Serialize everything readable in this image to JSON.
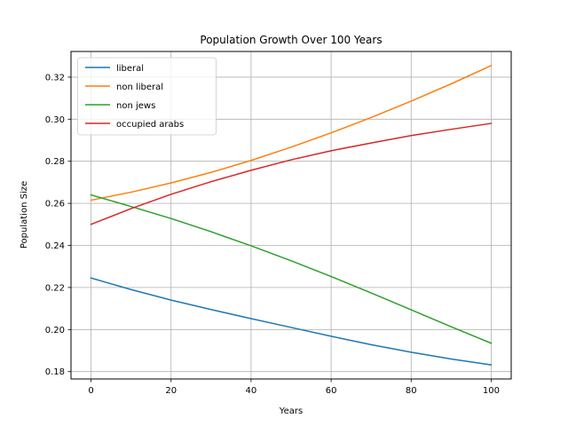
{
  "chart_data": {
    "type": "line",
    "title": "Population Growth Over 100 Years",
    "xlabel": "Years",
    "ylabel": "Population Size",
    "xlim": [
      -5,
      105
    ],
    "ylim": [
      0.1765,
      0.3322
    ],
    "xticks": [
      0,
      20,
      40,
      60,
      80,
      100
    ],
    "yticks": [
      0.18,
      0.2,
      0.22,
      0.24,
      0.26,
      0.28,
      0.3,
      0.32
    ],
    "xtick_labels": [
      "0",
      "20",
      "40",
      "60",
      "80",
      "100"
    ],
    "ytick_labels": [
      "0.18",
      "0.20",
      "0.22",
      "0.24",
      "0.26",
      "0.28",
      "0.30",
      "0.32"
    ],
    "grid": true,
    "legend_position": "upper-left",
    "x": [
      0,
      10,
      20,
      30,
      40,
      50,
      60,
      70,
      80,
      90,
      100
    ],
    "series": [
      {
        "name": "liberal",
        "color": "#1f77b4",
        "values": [
          0.2245,
          0.219,
          0.214,
          0.2095,
          0.2052,
          0.201,
          0.1968,
          0.1928,
          0.1892,
          0.186,
          0.1832
        ]
      },
      {
        "name": "non liberal",
        "color": "#ff7f0e",
        "values": [
          0.2615,
          0.2653,
          0.2697,
          0.2747,
          0.2804,
          0.2867,
          0.2935,
          0.3008,
          0.3086,
          0.3168,
          0.3255
        ]
      },
      {
        "name": "non jews",
        "color": "#2ca02c",
        "values": [
          0.264,
          0.2585,
          0.2528,
          0.2465,
          0.2398,
          0.2327,
          0.2252,
          0.2174,
          0.2094,
          0.2013,
          0.1935
        ]
      },
      {
        "name": "occupied arabs",
        "color": "#d62728",
        "values": [
          0.25,
          0.2575,
          0.2643,
          0.2703,
          0.2757,
          0.2807,
          0.285,
          0.2887,
          0.2922,
          0.2952,
          0.298
        ]
      }
    ]
  }
}
